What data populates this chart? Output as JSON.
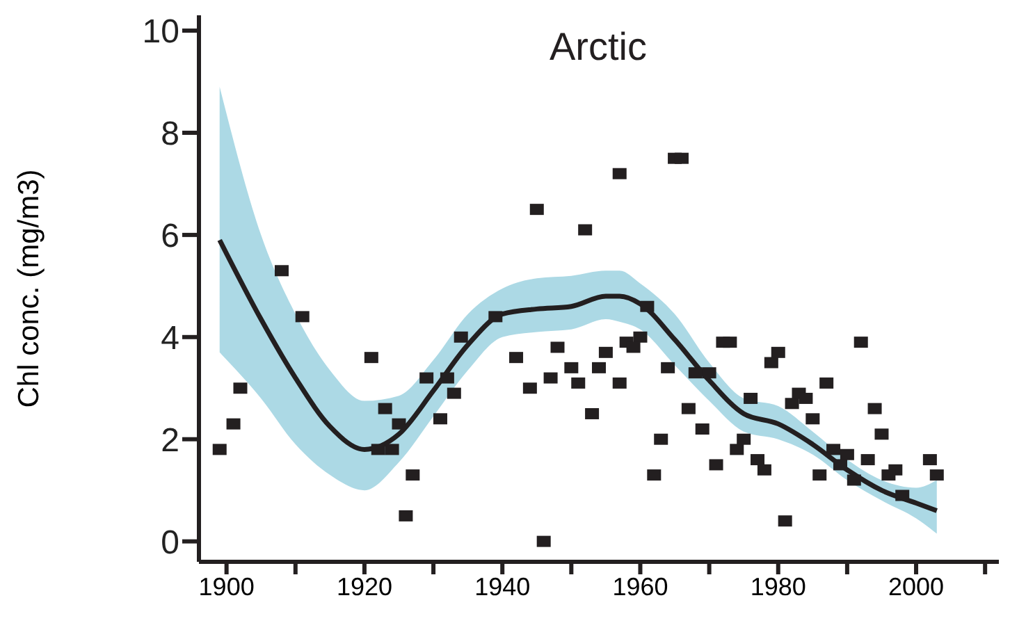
{
  "chart_data": {
    "type": "scatter",
    "title": "Arctic",
    "ylabel": "Chl conc. (mg/m3)",
    "xlim": [
      1896,
      2012
    ],
    "xticks": [
      1900,
      {
        "value": 1910,
        "label": null
      },
      1920,
      {
        "value": 1930,
        "label": null
      },
      1940,
      {
        "value": 1950,
        "label": null
      },
      1960,
      {
        "value": 1970,
        "label": null
      },
      1980,
      {
        "value": 1990,
        "label": null
      },
      2000,
      {
        "value": 2010,
        "label": null
      }
    ],
    "ylim": [
      -0.4,
      10.3
    ],
    "yticks": [
      0,
      2,
      4,
      6,
      8,
      10
    ],
    "grid": false,
    "series": [
      {
        "color": "#231f20",
        "marker": "square",
        "x": [
          1899,
          1901,
          1902,
          1908,
          1911,
          1921,
          1923,
          1922,
          1924,
          1925,
          1927,
          1926,
          1929,
          1931,
          1932,
          1933,
          1934,
          1939,
          1942,
          1944,
          1945,
          1947,
          1948,
          1946,
          1950,
          1951,
          1952,
          1953,
          1954,
          1955,
          1957,
          1965,
          1966,
          1957,
          1958,
          1960,
          1959,
          1961,
          1964,
          1963,
          1962,
          1967,
          1968,
          1970,
          1969,
          1971,
          1972,
          1973,
          1976,
          1975,
          1974,
          1977,
          1978,
          1980,
          1979,
          1981,
          1982,
          1983,
          1984,
          1985,
          1987,
          1986,
          1988,
          1990,
          1989,
          1991,
          1992,
          1994,
          1995,
          1993,
          1997,
          1996,
          1998,
          2002,
          2003
        ],
        "values": [
          1.8,
          2.3,
          3.0,
          5.3,
          4.4,
          3.6,
          2.6,
          1.8,
          1.8,
          2.3,
          1.3,
          0.5,
          3.2,
          2.4,
          3.2,
          2.9,
          4.0,
          4.4,
          3.6,
          3.0,
          6.5,
          3.2,
          3.8,
          0.0,
          3.4,
          3.1,
          6.1,
          2.5,
          3.4,
          3.7,
          7.2,
          7.5,
          7.5,
          3.1,
          3.9,
          4.0,
          3.8,
          4.6,
          3.4,
          2.0,
          1.3,
          2.6,
          3.3,
          3.3,
          2.2,
          1.5,
          3.9,
          3.9,
          2.8,
          2.0,
          1.8,
          1.6,
          1.4,
          3.7,
          3.5,
          0.4,
          2.7,
          2.9,
          2.8,
          2.4,
          3.1,
          1.3,
          1.8,
          1.7,
          1.5,
          1.2,
          3.9,
          2.6,
          2.1,
          1.6,
          1.4,
          1.3,
          0.9,
          1.6,
          1.3
        ]
      },
      {
        "type": "line",
        "color": "#231f20",
        "marker": "none",
        "line_style": "solid",
        "x": [
          1899,
          1905,
          1910,
          1915,
          1920,
          1925,
          1930,
          1935,
          1940,
          1945,
          1950,
          1955,
          1957,
          1960,
          1965,
          1970,
          1975,
          1980,
          1985,
          1990,
          1995,
          2000,
          2003
        ],
        "values": [
          5.9,
          4.35,
          3.2,
          2.25,
          1.8,
          2.1,
          2.95,
          3.85,
          4.45,
          4.55,
          4.6,
          4.8,
          4.8,
          4.65,
          3.95,
          3.15,
          2.5,
          2.3,
          1.9,
          1.4,
          1.0,
          0.75,
          0.6
        ],
        "lower": [
          3.7,
          2.8,
          1.9,
          1.3,
          1.0,
          1.55,
          2.45,
          3.35,
          4.0,
          4.1,
          4.15,
          4.35,
          4.3,
          4.15,
          3.45,
          2.75,
          2.15,
          2.0,
          1.7,
          1.2,
          0.8,
          0.45,
          0.15
        ],
        "upper": [
          8.9,
          6.0,
          4.45,
          3.35,
          2.75,
          2.85,
          3.55,
          4.45,
          4.95,
          5.15,
          5.2,
          5.3,
          5.3,
          5.05,
          4.45,
          3.5,
          2.8,
          2.65,
          2.15,
          1.6,
          1.2,
          1.05,
          1.2
        ]
      }
    ]
  }
}
